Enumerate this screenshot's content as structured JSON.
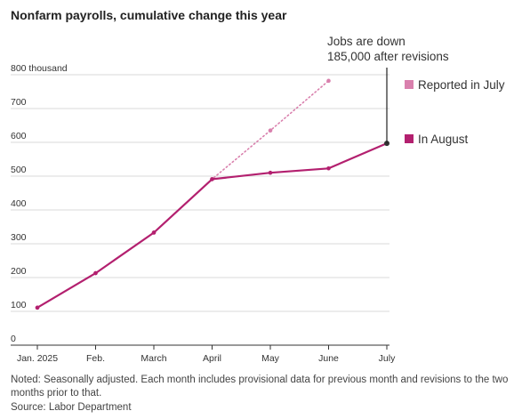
{
  "chart_data": {
    "type": "line",
    "title": "Nonfarm payrolls, cumulative change this year",
    "y_unit_label": "800 thousand",
    "categories": [
      "Jan. 2025",
      "Feb.",
      "March",
      "April",
      "May",
      "June",
      "July"
    ],
    "yticks": [
      0,
      100,
      200,
      300,
      400,
      500,
      600,
      700
    ],
    "ylim": [
      0,
      800
    ],
    "grid": true,
    "legend_position": "right",
    "series": [
      {
        "name": "Reported in July",
        "color": "#d980ad",
        "style": "dotted",
        "values": [
          111,
          213,
          333,
          491,
          635,
          782,
          null
        ]
      },
      {
        "name": "In August",
        "color": "#b3206f",
        "style": "solid",
        "values": [
          111,
          213,
          333,
          491,
          510,
          523,
          597
        ]
      }
    ],
    "annotation": {
      "lines": [
        "Jobs are down",
        "185,000 after revisions"
      ],
      "category": "July",
      "value": 782
    },
    "end_marker_color": "#333333"
  },
  "footer": {
    "note": "Noted: Seasonally adjusted. Each month includes provisional data for previous month and revisions to the two months prior to that.",
    "source": "Source: Labor Department"
  }
}
